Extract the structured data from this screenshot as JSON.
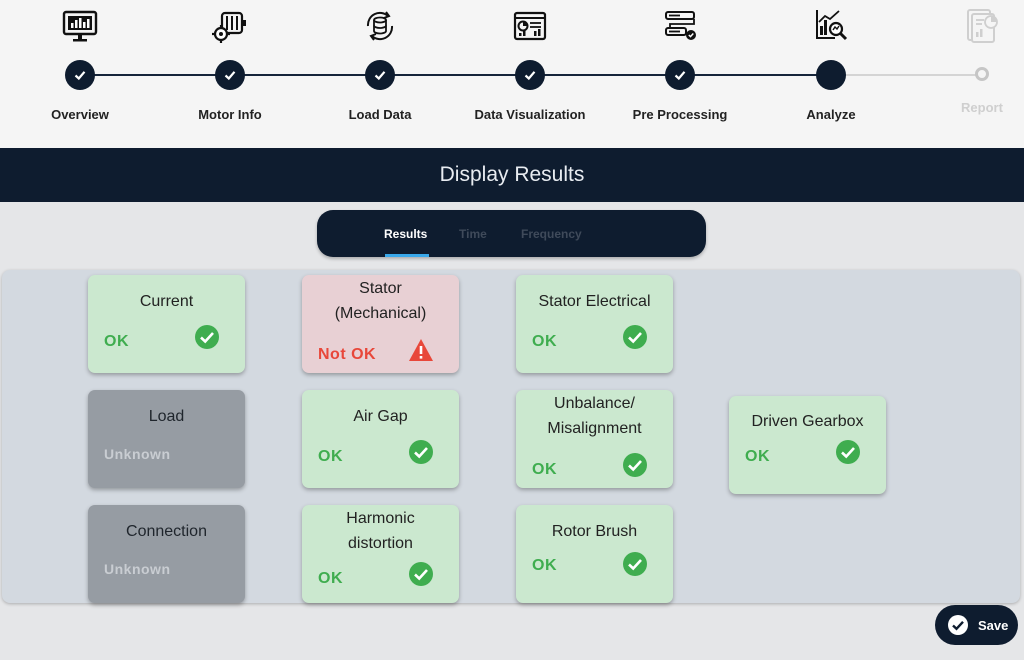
{
  "stepper": {
    "steps": [
      {
        "label": "Overview",
        "icon": "monitor-chart-icon",
        "state": "done"
      },
      {
        "label": "Motor Info",
        "icon": "motor-gear-icon",
        "state": "done"
      },
      {
        "label": "Load Data",
        "icon": "database-sync-icon",
        "state": "done"
      },
      {
        "label": "Data Visualization",
        "icon": "dashboard-chart-icon",
        "state": "done"
      },
      {
        "label": "Pre Processing",
        "icon": "flow-process-icon",
        "state": "done"
      },
      {
        "label": "Analyze",
        "icon": "chart-search-icon",
        "state": "current"
      },
      {
        "label": "Report",
        "icon": "report-document-icon",
        "state": "pending"
      }
    ]
  },
  "header": {
    "title": "Display Results"
  },
  "tabs": {
    "items": [
      "Results",
      "Time",
      "Frequency"
    ],
    "active": "Results"
  },
  "results": {
    "cards": [
      {
        "title": "Current",
        "status": "OK"
      },
      {
        "title": "Stator (Mechanical)",
        "status": "Not OK"
      },
      {
        "title": "Stator Electrical",
        "status": "OK"
      },
      {
        "title": "Load",
        "status": "Unknown"
      },
      {
        "title": "Air Gap",
        "status": "OK"
      },
      {
        "title": "Unbalance/ Misalignment",
        "status": "OK"
      },
      {
        "title": "Driven Gearbox",
        "status": "OK"
      },
      {
        "title": "Connection",
        "status": "Unknown"
      },
      {
        "title": "Harmonic distortion",
        "status": "OK"
      },
      {
        "title": "Rotor Brush",
        "status": "OK"
      }
    ]
  },
  "save": {
    "label": "Save"
  },
  "colors": {
    "navy": "#0e1c2f",
    "ok_bg": "#cbe8cf",
    "ok_text": "#3fad4f",
    "bad_bg": "#e8d0d4",
    "bad_text": "#e8473a",
    "unknown_bg": "#969ca3",
    "tab_accent": "#39a8ea"
  }
}
